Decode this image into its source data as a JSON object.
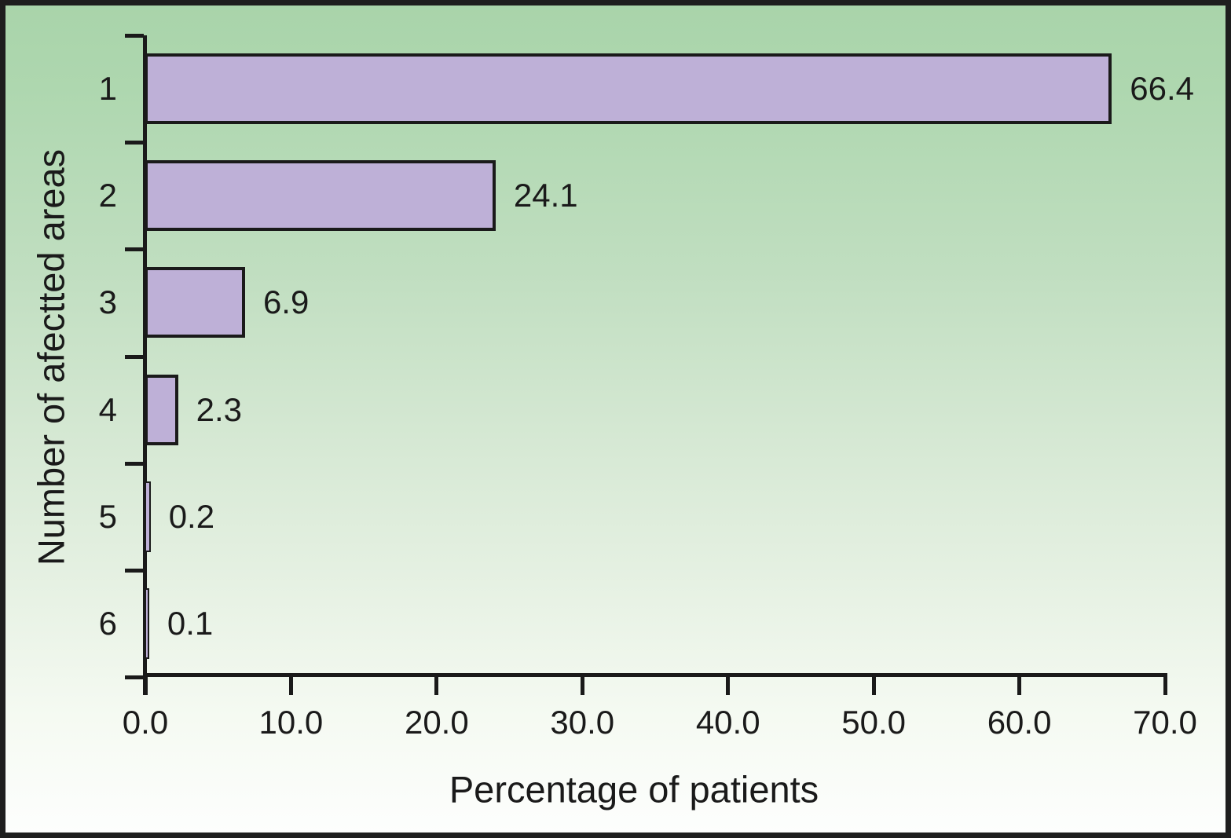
{
  "chart_data": {
    "type": "bar",
    "orientation": "horizontal",
    "title": "",
    "categories": [
      "1",
      "2",
      "3",
      "4",
      "5",
      "6"
    ],
    "values": [
      66.4,
      24.1,
      6.9,
      2.3,
      0.2,
      0.1
    ],
    "value_labels": [
      "66.4",
      "24.1",
      "6.9",
      "2.3",
      "0.2",
      "0.1"
    ],
    "xlabel": "Percentage of patients",
    "ylabel": "Number of afectted areas",
    "xlim": [
      0,
      70
    ],
    "x_tick_values": [
      0,
      10,
      20,
      30,
      40,
      50,
      60,
      70
    ],
    "x_tick_labels": [
      "0.0",
      "10.0",
      "20.0",
      "30.0",
      "40.0",
      "50.0",
      "60.0",
      "70.0"
    ],
    "grid": false,
    "legend": "none",
    "data_labels": "outside-end",
    "colors": {
      "bar_fill": "#beb0d7",
      "bar_border": "#1a1a1a",
      "axis": "#1a1a1a",
      "text": "#1a1a1a",
      "background_top": "#a9d4aa",
      "background_bottom": "#fdfefd",
      "frame_border": "#1e1e1e"
    }
  }
}
